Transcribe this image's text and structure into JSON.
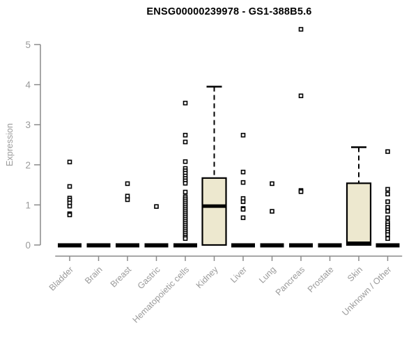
{
  "title": "ENSG00000239978 - GS1-388B5.6",
  "chart_data": {
    "type": "box",
    "title": "ENSG00000239978 - GS1-388B5.6",
    "xlabel": "",
    "ylabel": "Expression",
    "ylim": [
      0,
      5
    ],
    "yticks": [
      0,
      1,
      2,
      3,
      4,
      5
    ],
    "grid": false,
    "legend": "none",
    "colors": {
      "box_fill": "#EDE8CF",
      "box_stroke": "#000000",
      "median": "#000000",
      "outlier_stroke": "#000000",
      "outlier_fill": "#ffffff",
      "axis_line": "#8a8a8a",
      "tick_label": "#9a9a9a",
      "title": "#000000"
    },
    "categories": [
      "Bladder",
      "Brain",
      "Breast",
      "Gastric",
      "Hematopoietic cells",
      "Kidney",
      "Liver",
      "Lung",
      "Pancreas",
      "Prostate",
      "Skin",
      "Unknown / Other"
    ],
    "series": [
      {
        "label": "Bladder",
        "q1": 0,
        "median": 0,
        "q3": 0,
        "whisker_low": 0,
        "whisker_high": 0,
        "outliers": [
          2.07,
          1.46,
          1.17,
          1.12,
          1.05,
          0.97,
          0.78,
          0.75
        ]
      },
      {
        "label": "Brain",
        "q1": 0,
        "median": 0,
        "q3": 0,
        "whisker_low": 0,
        "whisker_high": 0,
        "outliers": []
      },
      {
        "label": "Breast",
        "q1": 0,
        "median": 0,
        "q3": 0,
        "whisker_low": 0,
        "whisker_high": 0,
        "outliers": [
          1.53,
          1.22,
          1.13
        ]
      },
      {
        "label": "Gastric",
        "q1": 0,
        "median": 0,
        "q3": 0,
        "whisker_low": 0,
        "whisker_high": 0,
        "outliers": [
          0.96
        ]
      },
      {
        "label": "Hematopoietic cells",
        "q1": 0,
        "median": 0,
        "q3": 0,
        "whisker_low": 0,
        "whisker_high": 0,
        "outliers": [
          3.54,
          2.74,
          2.57,
          2.08,
          1.91,
          1.85,
          1.79,
          1.72,
          1.66,
          1.6,
          1.54,
          1.32,
          1.2,
          1.15,
          1.1,
          1.05,
          1.0,
          0.95,
          0.9,
          0.85,
          0.8,
          0.75,
          0.7,
          0.65,
          0.6,
          0.55,
          0.5,
          0.45,
          0.4,
          0.35,
          0.3,
          0.25,
          0.2,
          0.16
        ]
      },
      {
        "label": "Kidney",
        "q1": 0,
        "median": 0.97,
        "q3": 1.67,
        "whisker_low": 0,
        "whisker_high": 3.95,
        "outliers": []
      },
      {
        "label": "Liver",
        "q1": 0,
        "median": 0,
        "q3": 0,
        "whisker_low": 0,
        "whisker_high": 0,
        "outliers": [
          2.74,
          1.82,
          1.56,
          1.16,
          1.08,
          0.91,
          0.89,
          0.68
        ]
      },
      {
        "label": "Lung",
        "q1": 0,
        "median": 0,
        "q3": 0,
        "whisker_low": 0,
        "whisker_high": 0,
        "outliers": [
          1.53,
          0.84
        ]
      },
      {
        "label": "Pancreas",
        "q1": 0,
        "median": 0,
        "q3": 0,
        "whisker_low": 0,
        "whisker_high": 0,
        "outliers": [
          5.38,
          3.72,
          1.36,
          1.33
        ]
      },
      {
        "label": "Prostate",
        "q1": 0,
        "median": 0,
        "q3": 0,
        "whisker_low": 0,
        "whisker_high": 0,
        "outliers": []
      },
      {
        "label": "Skin",
        "q1": 0,
        "median": 0.02,
        "q3": 1.54,
        "whisker_low": 0,
        "whisker_high": 2.44,
        "outliers": []
      },
      {
        "label": "Unknown / Other",
        "q1": 0,
        "median": 0,
        "q3": 0,
        "whisker_low": 0,
        "whisker_high": 0,
        "outliers": [
          2.33,
          1.39,
          1.27,
          1.08,
          0.94,
          0.84,
          0.68,
          0.56,
          0.5,
          0.44,
          0.38,
          0.32,
          0.26,
          0.16
        ]
      }
    ]
  }
}
